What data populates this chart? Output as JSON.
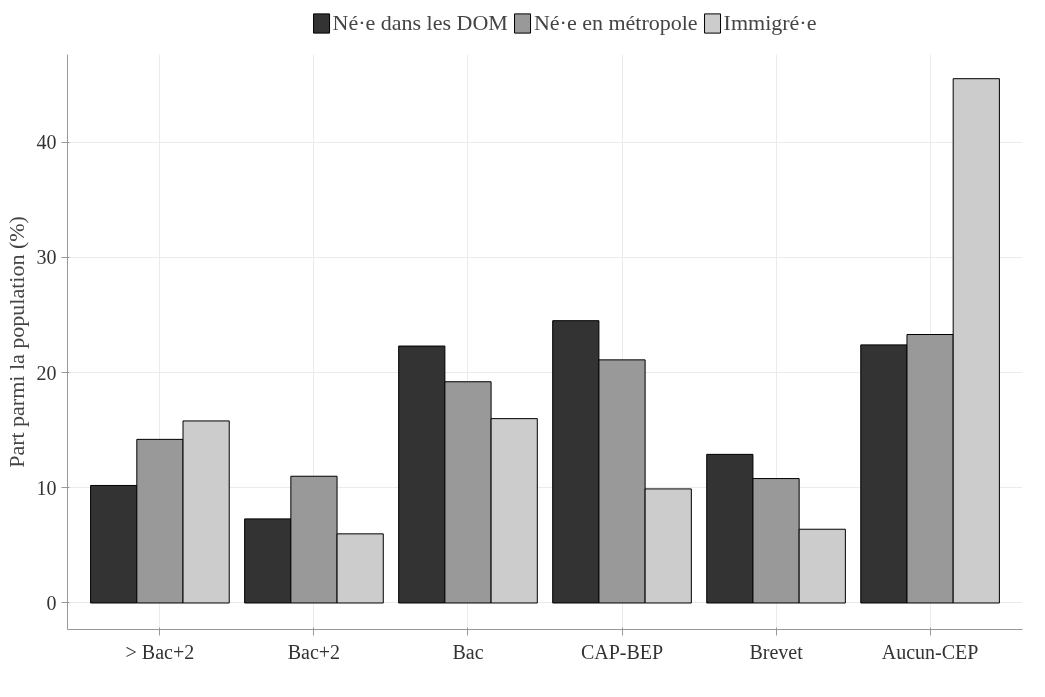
{
  "chart_data": {
    "type": "bar",
    "ylabel": "Part parmi la population (%)",
    "categories": [
      "> Bac+2",
      "Bac+2",
      "Bac",
      "CAP-BEP",
      "Brevet",
      "Aucun-CEP"
    ],
    "series": [
      {
        "name": "Né·e dans les DOM",
        "color": "#333333",
        "values": [
          10.2,
          7.3,
          22.3,
          24.5,
          12.9,
          22.4
        ]
      },
      {
        "name": "Né·e en métropole",
        "color": "#999999",
        "values": [
          14.2,
          11.0,
          19.2,
          21.1,
          10.8,
          23.3
        ]
      },
      {
        "name": "Immigré·e",
        "color": "#cccccc",
        "values": [
          15.8,
          6.0,
          16.0,
          9.9,
          6.4,
          45.5
        ]
      }
    ],
    "ylim": [
      -2.3,
      47.6
    ],
    "yticks": [
      0,
      10,
      20,
      30,
      40
    ],
    "grid": true,
    "legend": "top"
  }
}
